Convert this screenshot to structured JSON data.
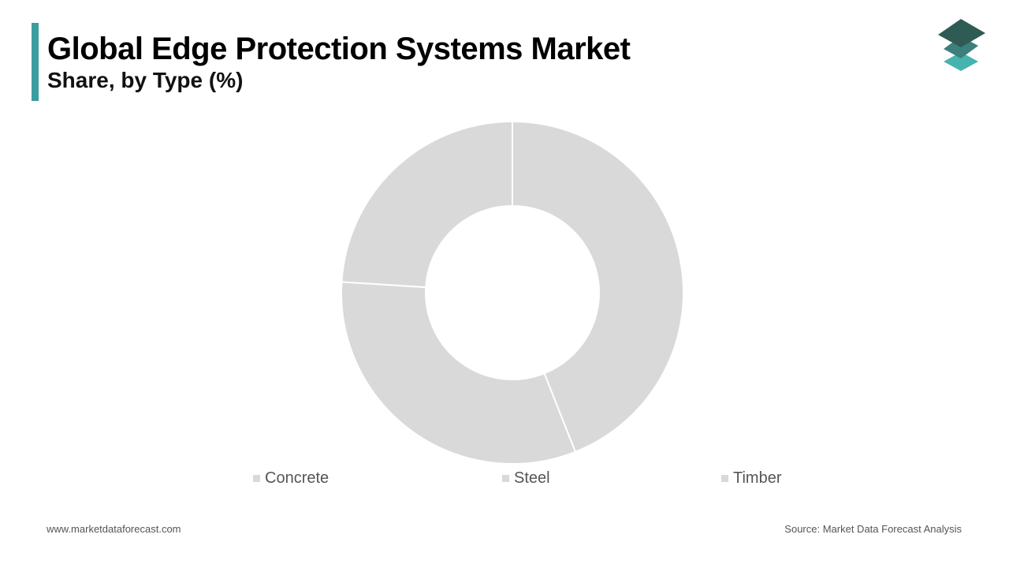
{
  "header": {
    "title": "Global Edge Protection Systems Market",
    "subtitle": "Share, by Type (%)",
    "accent_color": "#3a9e9e",
    "logo_icon": "stacked-layers-icon"
  },
  "chart_data": {
    "type": "pie",
    "style": "donut",
    "categories": [
      "Concrete",
      "Steel",
      "Timber"
    ],
    "values": [
      44,
      32,
      24
    ],
    "slice_color": "#d9d9d9",
    "legend_position": "bottom",
    "title": "",
    "xlabel": "",
    "ylabel": ""
  },
  "footer": {
    "website": "www.marketdataforecast.com",
    "source": "Source: Market Data Forecast Analysis"
  }
}
